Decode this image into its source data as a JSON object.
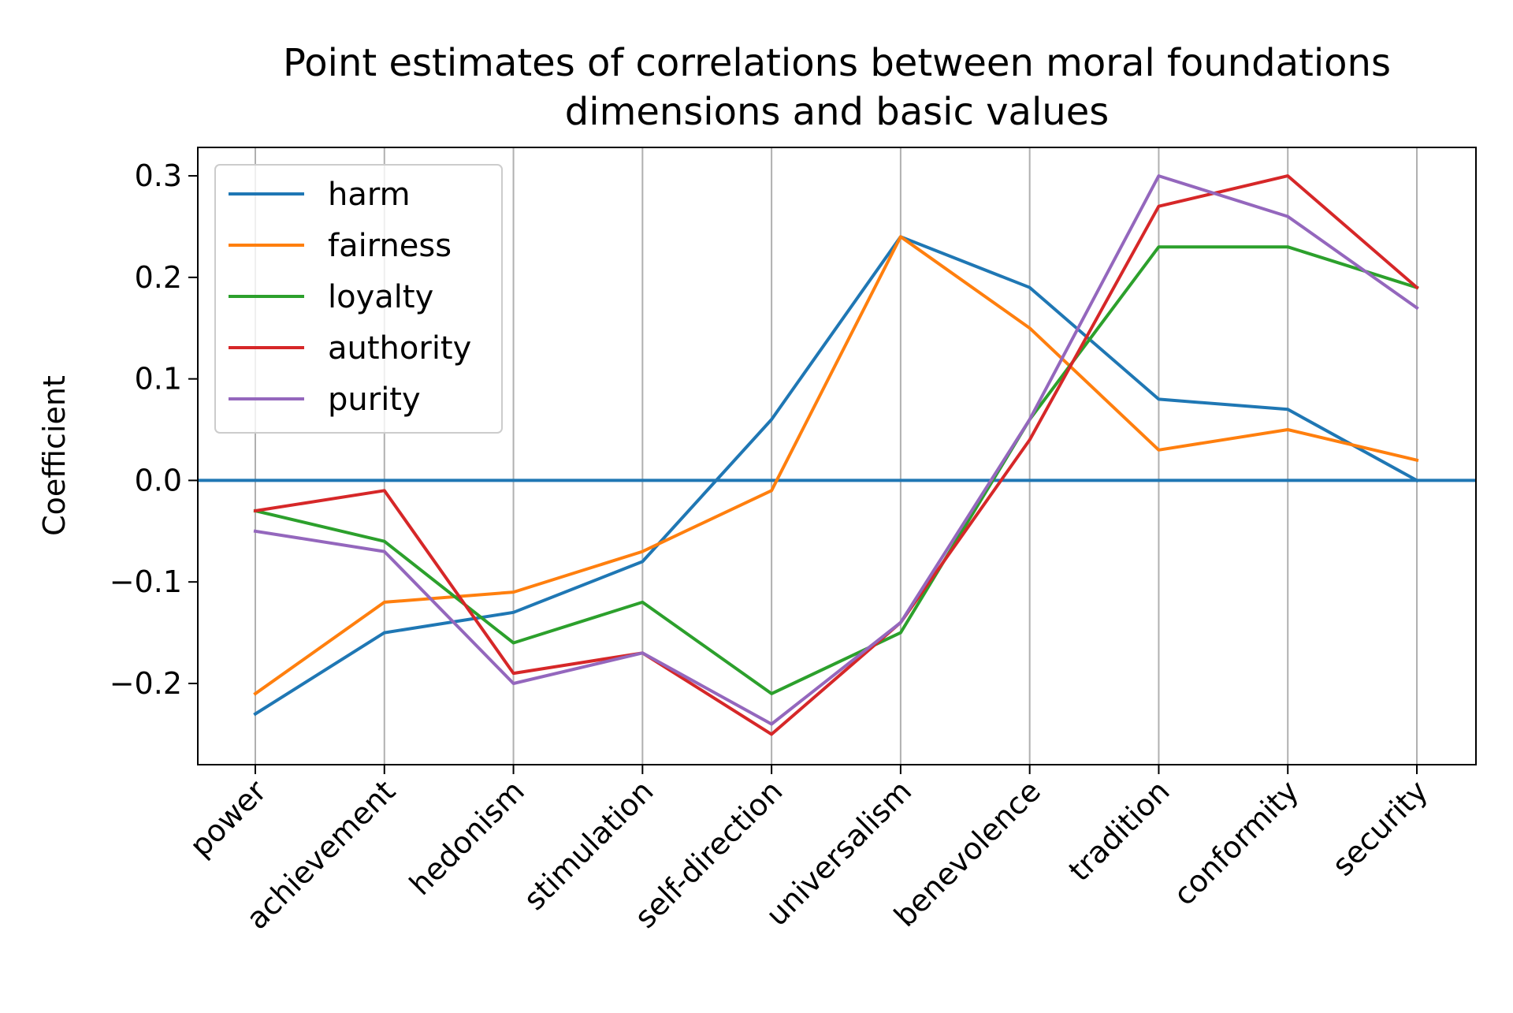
{
  "chart_data": {
    "type": "line",
    "title_lines": [
      "Point estimates of correlations between moral foundations",
      "dimensions and basic values"
    ],
    "xlabel": "",
    "ylabel": "Coefficient",
    "categories": [
      "power",
      "achievement",
      "hedonism",
      "stimulation",
      "self-direction",
      "universalism",
      "benevolence",
      "tradition",
      "conformity",
      "security"
    ],
    "ylim": [
      -0.28,
      0.328
    ],
    "yticks": [
      {
        "value": -0.2,
        "label": "−0.2"
      },
      {
        "value": -0.1,
        "label": "−0.1"
      },
      {
        "value": 0.0,
        "label": "0.0"
      },
      {
        "value": 0.1,
        "label": "0.1"
      },
      {
        "value": 0.2,
        "label": "0.2"
      },
      {
        "value": 0.3,
        "label": "0.3"
      }
    ],
    "grid": "vertical",
    "reference_line": {
      "value": 0.0,
      "color": "#1f77b4"
    },
    "legend_position": "upper-left",
    "series": [
      {
        "name": "harm",
        "color": "#1f77b4",
        "values": [
          -0.23,
          -0.15,
          -0.13,
          -0.08,
          0.06,
          0.24,
          0.19,
          0.08,
          0.07,
          0.0
        ]
      },
      {
        "name": "fairness",
        "color": "#ff7f0e",
        "values": [
          -0.21,
          -0.12,
          -0.11,
          -0.07,
          -0.01,
          0.24,
          0.15,
          0.03,
          0.05,
          0.02
        ]
      },
      {
        "name": "loyalty",
        "color": "#2ca02c",
        "values": [
          -0.03,
          -0.06,
          -0.16,
          -0.12,
          -0.21,
          -0.15,
          0.06,
          0.23,
          0.23,
          0.19
        ]
      },
      {
        "name": "authority",
        "color": "#d62728",
        "values": [
          -0.03,
          -0.01,
          -0.19,
          -0.17,
          -0.25,
          -0.14,
          0.04,
          0.27,
          0.3,
          0.19
        ]
      },
      {
        "name": "purity",
        "color": "#9467bd",
        "values": [
          -0.05,
          -0.07,
          -0.2,
          -0.17,
          -0.24,
          -0.14,
          0.06,
          0.3,
          0.26,
          0.17
        ]
      }
    ]
  }
}
